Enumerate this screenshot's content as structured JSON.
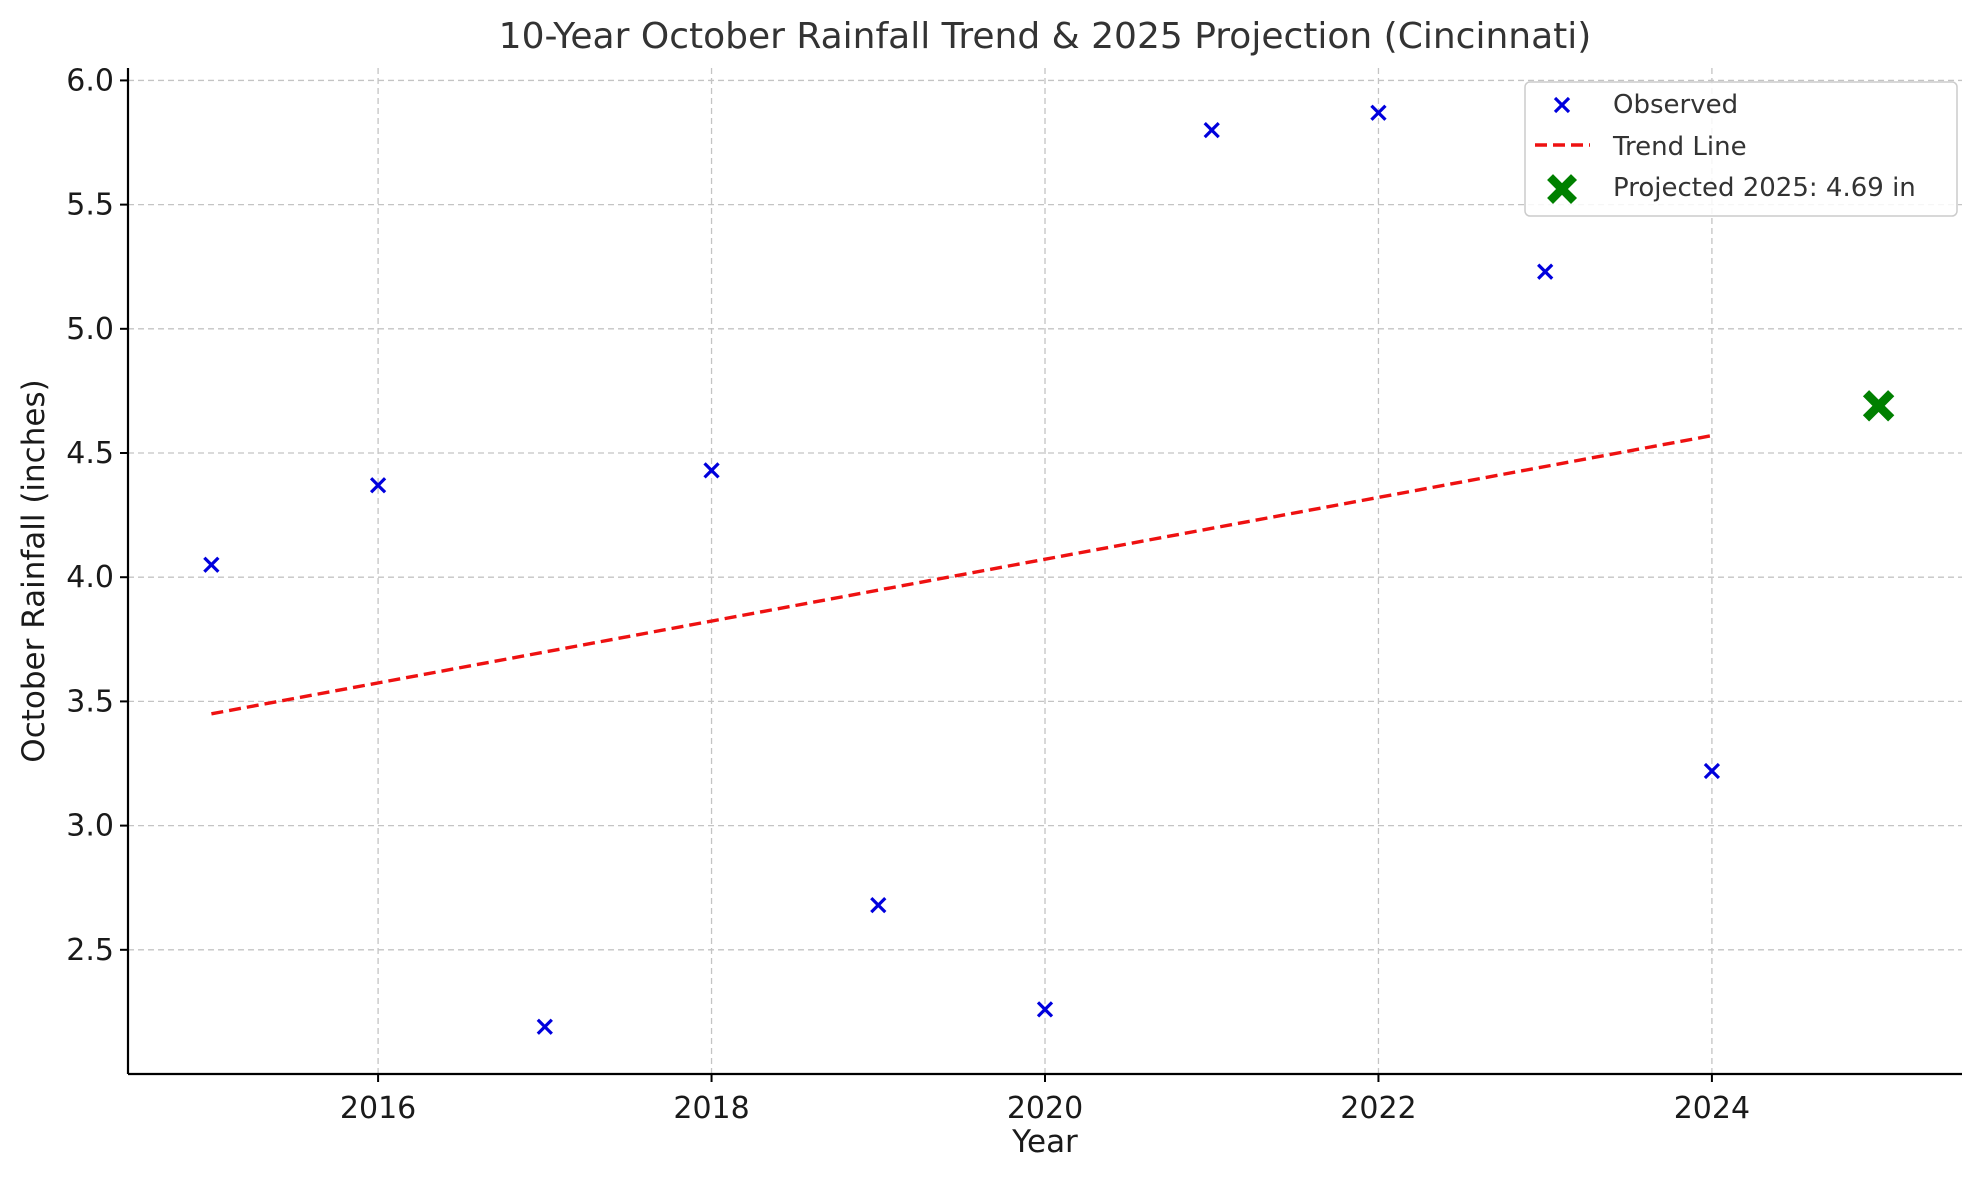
{
  "chart_data": {
    "type": "scatter",
    "title": "10-Year October Rainfall Trend & 2025 Projection (Cincinnati)",
    "xlabel": "Year",
    "ylabel": "October Rainfall (inches)",
    "xlim": [
      2014.5,
      2025.5
    ],
    "ylim": [
      2.0,
      6.05
    ],
    "x_ticks": [
      2016,
      2018,
      2020,
      2022,
      2024
    ],
    "y_ticks": [
      2.5,
      3.0,
      3.5,
      4.0,
      4.5,
      5.0,
      5.5,
      6.0
    ],
    "grid": true,
    "legend_position": "top-right",
    "series": [
      {
        "name": "Observed",
        "kind": "scatter",
        "marker": "x",
        "color": "#0000dd",
        "x": [
          2015,
          2016,
          2017,
          2018,
          2019,
          2020,
          2021,
          2022,
          2023,
          2024
        ],
        "y": [
          4.05,
          4.37,
          2.19,
          4.43,
          2.68,
          2.26,
          5.8,
          5.87,
          5.23,
          3.22
        ]
      },
      {
        "name": "Trend Line",
        "kind": "line",
        "dash": "dashed",
        "color": "#ee1111",
        "x": [
          2015,
          2024
        ],
        "y": [
          3.45,
          4.57
        ]
      },
      {
        "name": "Projected 2025: 4.69 in",
        "kind": "scatter",
        "marker": "X",
        "color": "#008000",
        "x": [
          2025
        ],
        "y": [
          4.69
        ]
      }
    ]
  }
}
